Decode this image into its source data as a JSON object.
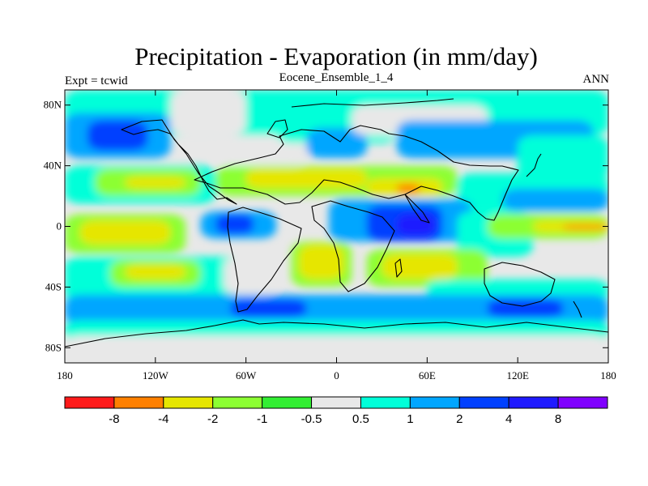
{
  "header": {
    "title": "Precipitation - Evaporation (in mm/day)",
    "left": "Expt = tcwid",
    "center": "Eocene_Ensemble_1_4",
    "right": "ANN"
  },
  "axes": {
    "y_ticks": [
      {
        "value": 80,
        "label": "80N"
      },
      {
        "value": 40,
        "label": "40N"
      },
      {
        "value": 0,
        "label": "0"
      },
      {
        "value": -40,
        "label": "40S"
      },
      {
        "value": -80,
        "label": "80S"
      }
    ],
    "x_ticks": [
      {
        "value": -180,
        "label": "180"
      },
      {
        "value": -120,
        "label": "120W"
      },
      {
        "value": -60,
        "label": "60W"
      },
      {
        "value": 0,
        "label": "0"
      },
      {
        "value": 60,
        "label": "60E"
      },
      {
        "value": 120,
        "label": "120E"
      },
      {
        "value": 180,
        "label": "180"
      }
    ],
    "lon_range": [
      -180,
      180
    ],
    "lat_range": [
      -90,
      90
    ]
  },
  "colorbar": {
    "colors": [
      "#ff1a1a",
      "#ff8000",
      "#e6e600",
      "#8cff33",
      "#33ee33",
      "#e8e8e8",
      "#00ffd9",
      "#00a6ff",
      "#0040ff",
      "#1f1aff",
      "#8000ff"
    ],
    "labels": [
      "-8",
      "-4",
      "-2",
      "-1",
      "-0.5",
      "0.5",
      "1",
      "2",
      "4",
      "8"
    ]
  },
  "palette": {
    "neutral": "#e8e8e8",
    "cyan": "#00ffd9",
    "lightblue": "#00a6ff",
    "blue": "#0040ff",
    "deepblue": "#1f1aff",
    "green": "#33ee33",
    "lightgreen": "#8cff33",
    "yellow": "#e6e600",
    "orange": "#ff8000"
  },
  "field_regions": [
    {
      "color": "cyan",
      "lon": [
        -180,
        180
      ],
      "lat": [
        60,
        90
      ]
    },
    {
      "color": "lightblue",
      "lon": [
        -180,
        -110
      ],
      "lat": [
        45,
        75
      ]
    },
    {
      "color": "blue",
      "lon": [
        -165,
        -125
      ],
      "lat": [
        50,
        70
      ]
    },
    {
      "color": "neutral",
      "lon": [
        -110,
        -60
      ],
      "lat": [
        60,
        90
      ]
    },
    {
      "color": "neutral",
      "lon": [
        -80,
        -20
      ],
      "lat": [
        40,
        60
      ]
    },
    {
      "color": "cyan",
      "lon": [
        -40,
        40
      ],
      "lat": [
        55,
        80
      ]
    },
    {
      "color": "lightblue",
      "lon": [
        -20,
        20
      ],
      "lat": [
        45,
        65
      ]
    },
    {
      "color": "neutral",
      "lon": [
        10,
        100
      ],
      "lat": [
        60,
        80
      ]
    },
    {
      "color": "lightblue",
      "lon": [
        40,
        170
      ],
      "lat": [
        45,
        70
      ]
    },
    {
      "color": "cyan",
      "lon": [
        120,
        180
      ],
      "lat": [
        30,
        60
      ]
    },
    {
      "color": "cyan",
      "lon": [
        -180,
        -80
      ],
      "lat": [
        15,
        40
      ]
    },
    {
      "color": "lightgreen",
      "lon": [
        -160,
        -90
      ],
      "lat": [
        20,
        38
      ]
    },
    {
      "color": "yellow",
      "lon": [
        -140,
        -100
      ],
      "lat": [
        25,
        33
      ]
    },
    {
      "color": "lightgreen",
      "lon": [
        -80,
        80
      ],
      "lat": [
        20,
        40
      ]
    },
    {
      "color": "yellow",
      "lon": [
        -60,
        20
      ],
      "lat": [
        25,
        38
      ]
    },
    {
      "color": "yellow",
      "lon": [
        20,
        70
      ],
      "lat": [
        20,
        32
      ]
    },
    {
      "color": "orange",
      "lon": [
        40,
        55
      ],
      "lat": [
        22,
        28
      ]
    },
    {
      "color": "cyan",
      "lon": [
        80,
        180
      ],
      "lat": [
        10,
        35
      ]
    },
    {
      "color": "lightblue",
      "lon": [
        110,
        180
      ],
      "lat": [
        10,
        25
      ]
    },
    {
      "color": "lightgreen",
      "lon": [
        -180,
        -100
      ],
      "lat": [
        -18,
        8
      ]
    },
    {
      "color": "yellow",
      "lon": [
        -170,
        -110
      ],
      "lat": [
        -12,
        4
      ]
    },
    {
      "color": "lightblue",
      "lon": [
        -90,
        -40
      ],
      "lat": [
        -8,
        10
      ]
    },
    {
      "color": "blue",
      "lon": [
        -80,
        -55
      ],
      "lat": [
        -5,
        8
      ]
    },
    {
      "color": "lightblue",
      "lon": [
        -5,
        90
      ],
      "lat": [
        -10,
        18
      ]
    },
    {
      "color": "blue",
      "lon": [
        20,
        70
      ],
      "lat": [
        -10,
        14
      ]
    },
    {
      "color": "deepblue",
      "lon": [
        40,
        65
      ],
      "lat": [
        -6,
        8
      ]
    },
    {
      "color": "cyan",
      "lon": [
        80,
        130
      ],
      "lat": [
        -20,
        10
      ]
    },
    {
      "color": "lightgreen",
      "lon": [
        100,
        180
      ],
      "lat": [
        -8,
        8
      ]
    },
    {
      "color": "yellow",
      "lon": [
        130,
        180
      ],
      "lat": [
        -4,
        4
      ]
    },
    {
      "color": "orange",
      "lon": [
        150,
        180
      ],
      "lat": [
        -2,
        1
      ]
    },
    {
      "color": "cyan",
      "lon": [
        -180,
        -60
      ],
      "lat": [
        -50,
        -20
      ]
    },
    {
      "color": "lightgreen",
      "lon": [
        -150,
        -90
      ],
      "lat": [
        -40,
        -22
      ]
    },
    {
      "color": "yellow",
      "lon": [
        -140,
        -100
      ],
      "lat": [
        -35,
        -25
      ]
    },
    {
      "color": "neutral",
      "lon": [
        -75,
        -40
      ],
      "lat": [
        -45,
        -20
      ]
    },
    {
      "color": "lightgreen",
      "lon": [
        -30,
        10
      ],
      "lat": [
        -40,
        -10
      ]
    },
    {
      "color": "yellow",
      "lon": [
        -25,
        5
      ],
      "lat": [
        -35,
        -12
      ]
    },
    {
      "color": "lightgreen",
      "lon": [
        20,
        100
      ],
      "lat": [
        -40,
        -15
      ]
    },
    {
      "color": "yellow",
      "lon": [
        30,
        80
      ],
      "lat": [
        -35,
        -18
      ]
    },
    {
      "color": "cyan",
      "lon": [
        60,
        180
      ],
      "lat": [
        -50,
        -35
      ]
    },
    {
      "color": "lightblue",
      "lon": [
        -180,
        180
      ],
      "lat": [
        -65,
        -45
      ]
    },
    {
      "color": "blue",
      "lon": [
        -70,
        -20
      ],
      "lat": [
        -60,
        -48
      ]
    },
    {
      "color": "blue",
      "lon": [
        100,
        150
      ],
      "lat": [
        -60,
        -48
      ]
    },
    {
      "color": "cyan",
      "lon": [
        -180,
        180
      ],
      "lat": [
        -75,
        -62
      ]
    },
    {
      "color": "neutral",
      "lon": [
        -180,
        180
      ],
      "lat": [
        -90,
        -72
      ]
    }
  ]
}
